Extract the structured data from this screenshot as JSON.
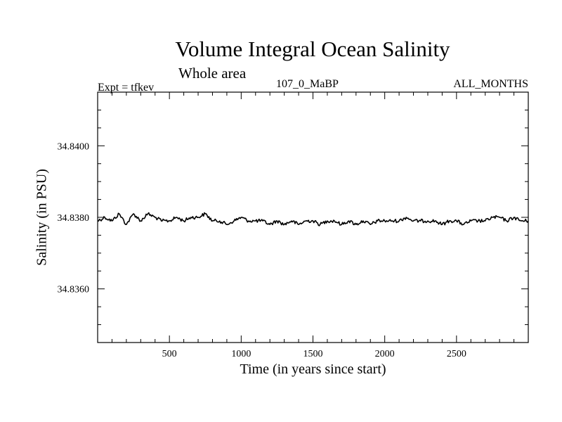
{
  "chart_data": {
    "type": "line",
    "title": "Volume Integral Ocean Salinity",
    "subtitle": "Whole area",
    "annotations": {
      "left": "Expt = tfkev",
      "center": "107_0_MaBP",
      "right": "ALL_MONTHS"
    },
    "xlabel": "Time (in years since start)",
    "ylabel": "Salinity (in PSU)",
    "xlim": [
      0,
      3000
    ],
    "ylim": [
      34.8345,
      34.8415
    ],
    "xticks": [
      500,
      1000,
      1500,
      2000,
      2500
    ],
    "xtick_labels": [
      "500",
      "1000",
      "1500",
      "2000",
      "2500"
    ],
    "yticks": [
      34.836,
      34.838,
      34.84
    ],
    "ytick_labels": [
      "34.8360",
      "34.8380",
      "34.8400"
    ],
    "grid": false,
    "series": [
      {
        "color": "#000000",
        "x": [
          0,
          50,
          100,
          150,
          200,
          250,
          300,
          350,
          400,
          450,
          500,
          550,
          600,
          650,
          700,
          750,
          800,
          850,
          900,
          950,
          1000,
          1050,
          1100,
          1150,
          1200,
          1250,
          1300,
          1350,
          1400,
          1450,
          1500,
          1550,
          1600,
          1650,
          1700,
          1750,
          1800,
          1850,
          1900,
          1950,
          2000,
          2050,
          2100,
          2150,
          2200,
          2250,
          2300,
          2350,
          2400,
          2450,
          2500,
          2550,
          2600,
          2650,
          2700,
          2750,
          2800,
          2850,
          2900,
          2950,
          3000
        ],
        "y": [
          34.8379,
          34.838,
          34.8379,
          34.8381,
          34.8378,
          34.8381,
          34.8379,
          34.8381,
          34.838,
          34.8379,
          34.8379,
          34.838,
          34.8379,
          34.838,
          34.838,
          34.8381,
          34.8379,
          34.8379,
          34.8378,
          34.8379,
          34.838,
          34.8379,
          34.8379,
          34.8379,
          34.8378,
          34.8379,
          34.8378,
          34.8379,
          34.8378,
          34.8379,
          34.8379,
          34.8378,
          34.8379,
          34.8379,
          34.8378,
          34.8379,
          34.8378,
          34.8379,
          34.8378,
          34.8379,
          34.8379,
          34.8379,
          34.8379,
          34.838,
          34.8379,
          34.8379,
          34.8379,
          34.8379,
          34.8378,
          34.8379,
          34.8379,
          34.8378,
          34.8379,
          34.8379,
          34.8379,
          34.838,
          34.838,
          34.8379,
          34.838,
          34.8379,
          34.8379
        ]
      }
    ]
  }
}
